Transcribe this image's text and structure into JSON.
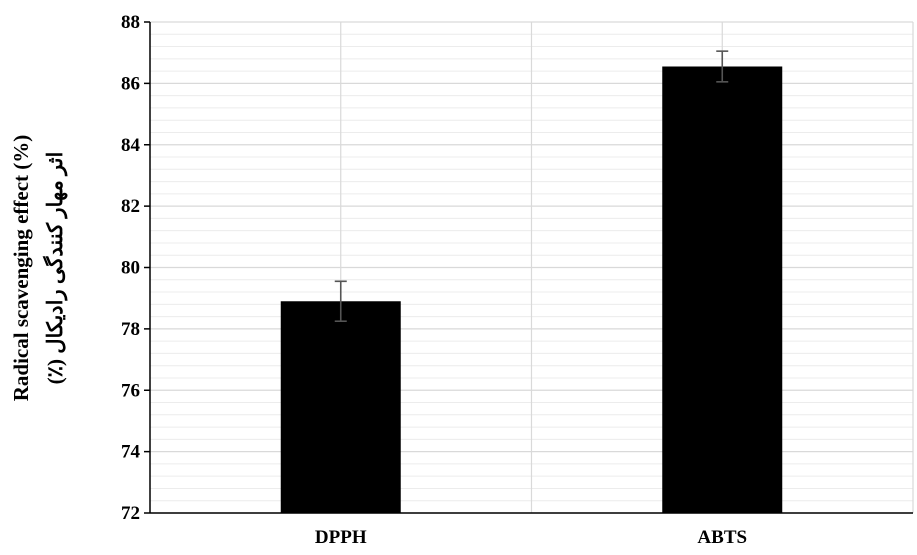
{
  "chart_data": {
    "type": "bar",
    "categories": [
      "DPPH",
      "ABTS"
    ],
    "values": [
      78.9,
      86.55
    ],
    "error": [
      0.65,
      0.5
    ],
    "title": "",
    "xlabel": "",
    "ylabel": "Radical scavenging effect (%)",
    "ylabel_fa": "اثر مهار کنندگی رادیکال (٪)",
    "ylim": [
      72,
      88
    ],
    "yticks": [
      "72",
      "74",
      "76",
      "78",
      "80",
      "82",
      "84",
      "86",
      "88"
    ],
    "grid": true,
    "legend": "none",
    "colors": {
      "bar": "#000000",
      "error_bar": "#555555",
      "grid_major": "#d9d9d9",
      "grid_minor": "#ececec",
      "axis": "#000000"
    }
  }
}
